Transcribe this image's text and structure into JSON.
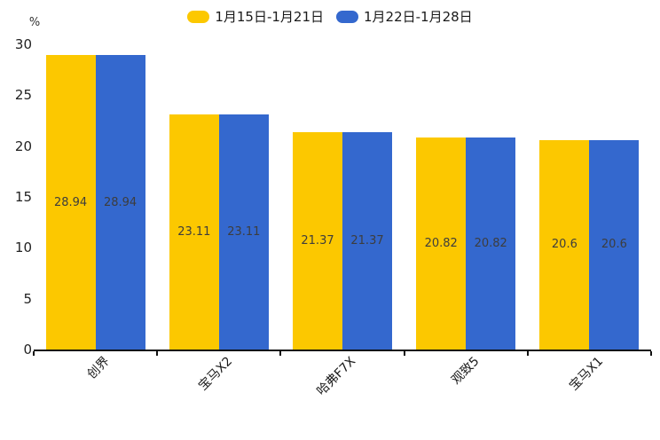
{
  "legend": {
    "items": [
      {
        "label": "1月15日-1月21日",
        "color": "#FCC800"
      },
      {
        "label": "1月22日-1月28日",
        "color": "#3468CE"
      }
    ]
  },
  "chart_data": {
    "type": "bar",
    "title": "",
    "categories": [
      "创界",
      "宝马X2",
      "哈弗F7X",
      "观致5",
      "宝马X1"
    ],
    "series": [
      {
        "name": "1月15日-1月21日",
        "color": "#FCC800",
        "values": [
          28.94,
          23.11,
          21.37,
          20.82,
          20.6
        ]
      },
      {
        "name": "1月22日-1月28日",
        "color": "#3468CE",
        "values": [
          28.94,
          23.11,
          21.37,
          20.82,
          20.6
        ]
      }
    ],
    "xlabel": "",
    "ylabel": "%",
    "ylim": [
      0,
      30
    ],
    "yticks": [
      0,
      5,
      10,
      15,
      20,
      25,
      30
    ],
    "grid": false,
    "legend_position": "top",
    "value_labels": "inside-center",
    "colors": {
      "axis": "#111111",
      "tick_label": "#222222",
      "value_label": "#3d3d3d",
      "category_label": "#1a1a1a"
    }
  }
}
